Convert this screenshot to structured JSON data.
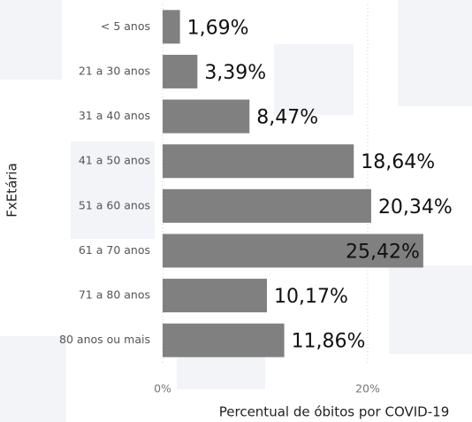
{
  "chart_data": {
    "type": "hbar",
    "categories": [
      "< 5 anos",
      "21 a 30 anos",
      "31 a 40 anos",
      "41 a 50 anos",
      "51 a 60 anos",
      "61 a 70 anos",
      "71 a 80 anos",
      "80 anos ou mais"
    ],
    "values": [
      1.69,
      3.39,
      8.47,
      18.64,
      20.34,
      25.42,
      10.17,
      11.86
    ],
    "value_labels": [
      "1,69%",
      "3,39%",
      "8,47%",
      "18,64%",
      "20,34%",
      "25,42%",
      "10,17%",
      "11,86%"
    ],
    "color": "#808080",
    "xlim": [
      0,
      30
    ],
    "xticks": [
      {
        "value": 0,
        "label": "0%"
      },
      {
        "value": 20,
        "label": "20%"
      }
    ],
    "x_label": "Percentual de óbitos por COVID-19",
    "y_label": "FxEtária"
  }
}
